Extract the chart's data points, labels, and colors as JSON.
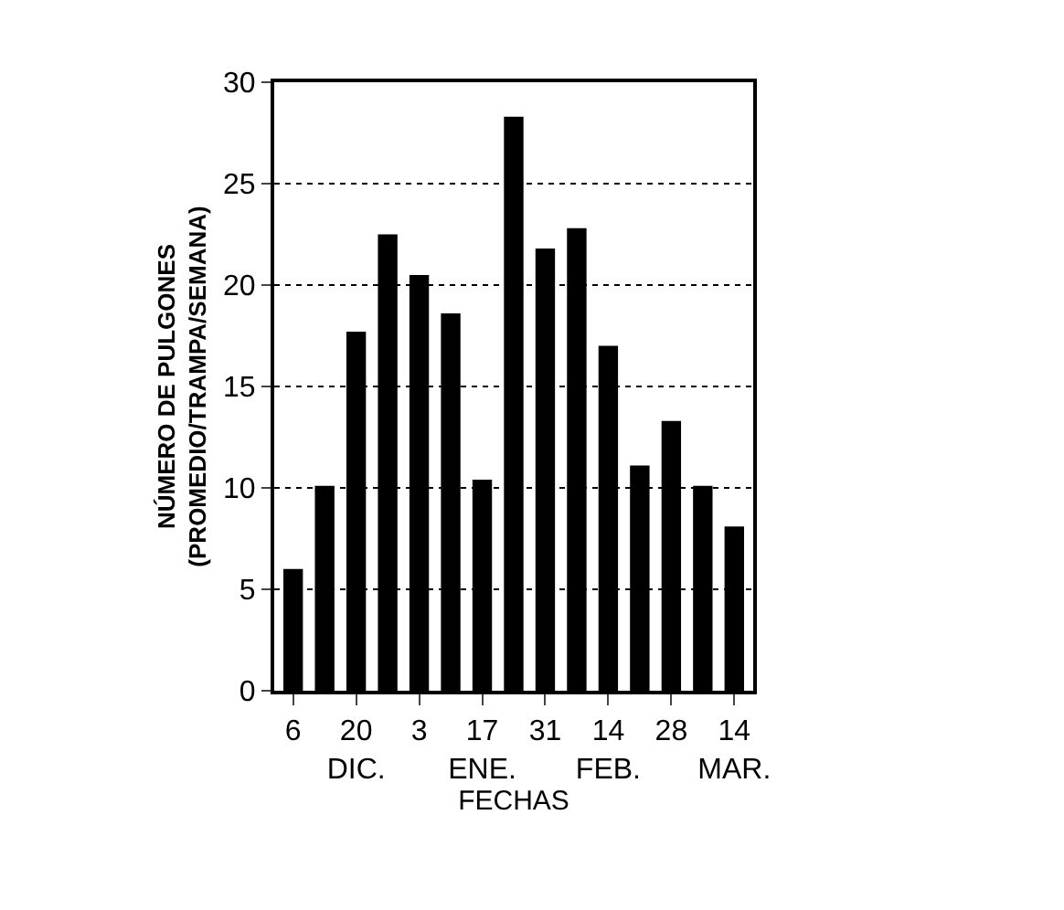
{
  "chart_data": {
    "type": "bar",
    "xlabel": "FECHAS",
    "ylabel": "NÚMERO DE PULGONES\n(PROMEDIO/TRAMPA/SEMANA)",
    "categories": [
      "6",
      null,
      "20\nDIC.",
      null,
      "3",
      null,
      "17\nENE.",
      null,
      "31",
      null,
      "14\nFEB.",
      null,
      "28",
      null,
      "14\nMAR."
    ],
    "values": [
      6.0,
      10.1,
      17.7,
      22.5,
      20.5,
      18.6,
      10.4,
      28.3,
      21.8,
      22.8,
      17.0,
      11.1,
      13.3,
      10.1,
      8.1
    ],
    "color": "#000000",
    "ylim": [
      0,
      30
    ],
    "yticks": [
      0,
      5,
      10,
      15,
      20,
      25,
      30
    ],
    "grid": "y"
  }
}
